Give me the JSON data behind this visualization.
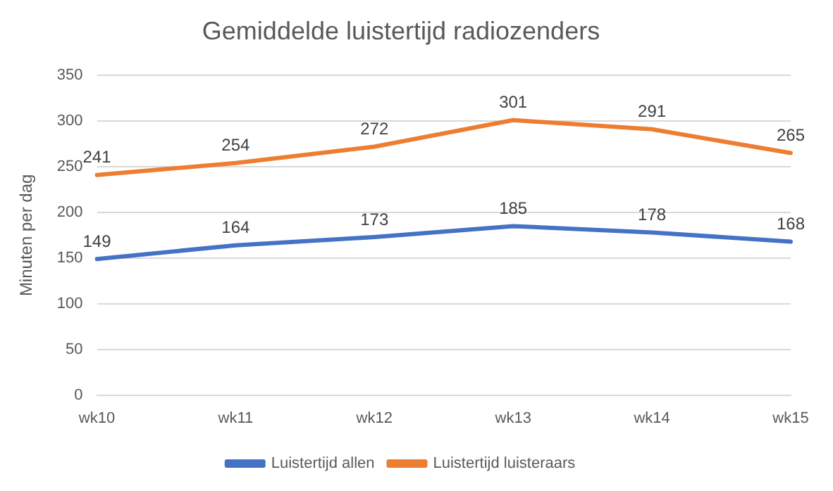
{
  "chart_data": {
    "type": "line",
    "title": "Gemiddelde luistertijd radiozenders",
    "ylabel": "Minuten per dag",
    "categories": [
      "wk10",
      "wk11",
      "wk12",
      "wk13",
      "wk14",
      "wk15"
    ],
    "series": [
      {
        "name": "Luistertijd allen",
        "color": "#4472c4",
        "values": [
          149,
          164,
          173,
          185,
          178,
          168
        ]
      },
      {
        "name": "Luistertijd luisteraars",
        "color": "#ed7d31",
        "values": [
          241,
          254,
          272,
          301,
          291,
          265
        ]
      }
    ],
    "ylim": [
      0,
      350
    ],
    "yticks": [
      0,
      50,
      100,
      150,
      200,
      250,
      300,
      350
    ],
    "grid": "y",
    "legend": "bottom",
    "data_labels": true,
    "marker": "none",
    "line_style": "solid"
  }
}
